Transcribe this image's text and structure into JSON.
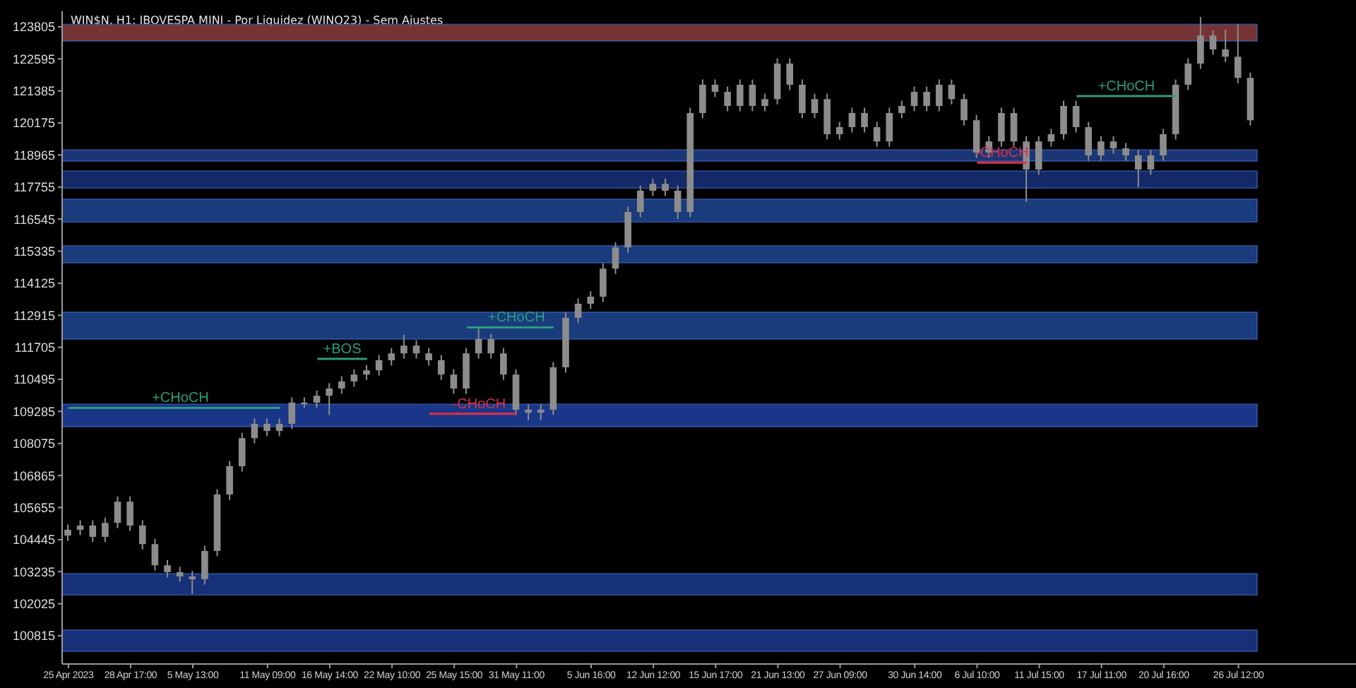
{
  "chart_data": {
    "type": "candlestick",
    "title": "WIN$N, H1:  IBOVESPA MINI - Por Liquidez (WINQ23) - Sem Ajustes",
    "color": "#8c8c8c",
    "categories": [
      "25 Apr 2023",
      null,
      null,
      null,
      null,
      "28 Apr 17:00",
      null,
      null,
      null,
      null,
      "5 May 13:00",
      null,
      null,
      null,
      null,
      null,
      "11 May 09:00",
      null,
      null,
      null,
      null,
      "16 May 14:00",
      null,
      null,
      null,
      null,
      "22 May 10:00",
      null,
      null,
      null,
      null,
      "25 May 15:00",
      null,
      null,
      null,
      null,
      "31 May 11:00",
      null,
      null,
      null,
      null,
      null,
      "5 Jun 16:00",
      null,
      null,
      null,
      null,
      "12 Jun 12:00",
      null,
      null,
      null,
      null,
      "15 Jun 17:00",
      null,
      null,
      null,
      null,
      "21 Jun 13:00",
      null,
      null,
      null,
      null,
      "27 Jun 09:00",
      null,
      null,
      null,
      null,
      null,
      "30 Jun 14:00",
      null,
      null,
      null,
      null,
      "6 Jul 10:00",
      null,
      null,
      null,
      null,
      "11 Jul 15:00",
      null,
      null,
      null,
      null,
      "17 Jul 11:00",
      null,
      null,
      null,
      null,
      "20 Jul 16:00",
      null,
      null,
      null,
      null,
      null,
      "26 Jul 12:00",
      null
    ],
    "ohlc": [
      [
        104600,
        105020,
        104400,
        104820
      ],
      [
        104820,
        105180,
        104620,
        104980
      ],
      [
        104980,
        105180,
        104350,
        104550
      ],
      [
        104550,
        105280,
        104350,
        105080
      ],
      [
        105080,
        106080,
        104880,
        105880
      ],
      [
        105880,
        106080,
        104780,
        104980
      ],
      [
        104980,
        105180,
        104080,
        104280
      ],
      [
        104280,
        104480,
        103280,
        103480
      ],
      [
        103480,
        103680,
        103020,
        103220
      ],
      [
        103220,
        103420,
        102860,
        103060
      ],
      [
        103060,
        103260,
        102400,
        102950
      ],
      [
        102950,
        104220,
        102750,
        104020
      ],
      [
        104020,
        106350,
        103820,
        106150
      ],
      [
        106150,
        107420,
        105950,
        107220
      ],
      [
        107220,
        108480,
        107020,
        108280
      ],
      [
        108280,
        109020,
        108080,
        108820
      ],
      [
        108820,
        109020,
        108350,
        108550
      ],
      [
        108550,
        109020,
        108350,
        108820
      ],
      [
        108820,
        109820,
        108620,
        109620
      ],
      [
        109620,
        109820,
        109420,
        109620
      ],
      [
        109620,
        110080,
        109420,
        109880
      ],
      [
        109880,
        110350,
        109150,
        110150
      ],
      [
        110150,
        110620,
        109950,
        110420
      ],
      [
        110420,
        110880,
        110220,
        110680
      ],
      [
        110680,
        111040,
        110480,
        110840
      ],
      [
        110840,
        111420,
        110640,
        111220
      ],
      [
        111220,
        111680,
        111020,
        111480
      ],
      [
        111480,
        112180,
        111280,
        111770
      ],
      [
        111770,
        111970,
        111280,
        111480
      ],
      [
        111480,
        111680,
        111020,
        111220
      ],
      [
        111220,
        111420,
        110480,
        110680
      ],
      [
        110680,
        110880,
        109950,
        110150
      ],
      [
        110150,
        111680,
        109950,
        111480
      ],
      [
        111480,
        112460,
        111280,
        112020
      ],
      [
        112020,
        112220,
        111280,
        111480
      ],
      [
        111480,
        111680,
        110480,
        110680
      ],
      [
        110680,
        110880,
        109150,
        109350
      ],
      [
        109350,
        109550,
        108950,
        109240
      ],
      [
        109240,
        109550,
        108950,
        109350
      ],
      [
        109350,
        111150,
        109150,
        110950
      ],
      [
        110950,
        113020,
        110750,
        112820
      ],
      [
        112820,
        113550,
        112620,
        113350
      ],
      [
        113350,
        113820,
        113150,
        113620
      ],
      [
        113620,
        114880,
        113420,
        114680
      ],
      [
        114680,
        115680,
        114480,
        115480
      ],
      [
        115480,
        117020,
        115280,
        116820
      ],
      [
        116820,
        117820,
        116620,
        117620
      ],
      [
        117620,
        118080,
        117420,
        117880
      ],
      [
        117880,
        118080,
        117420,
        117620
      ],
      [
        117620,
        117820,
        116550,
        116820
      ],
      [
        116820,
        120750,
        116620,
        120550
      ],
      [
        120550,
        121820,
        120350,
        121620
      ],
      [
        121620,
        121820,
        121150,
        121350
      ],
      [
        121350,
        121550,
        120620,
        120820
      ],
      [
        120820,
        121820,
        120620,
        121620
      ],
      [
        121620,
        121820,
        120620,
        120820
      ],
      [
        120820,
        121280,
        120620,
        121080
      ],
      [
        121080,
        122620,
        120880,
        122420
      ],
      [
        122420,
        122620,
        121420,
        121620
      ],
      [
        121620,
        121820,
        120350,
        120550
      ],
      [
        120550,
        121280,
        120350,
        121080
      ],
      [
        121080,
        121280,
        119550,
        119750
      ],
      [
        119750,
        120220,
        119550,
        120020
      ],
      [
        120020,
        120750,
        119820,
        120550
      ],
      [
        120550,
        120750,
        119820,
        120020
      ],
      [
        120020,
        120220,
        119280,
        119480
      ],
      [
        119480,
        120750,
        119280,
        120550
      ],
      [
        120550,
        121020,
        120350,
        120820
      ],
      [
        120820,
        121550,
        120620,
        121350
      ],
      [
        121350,
        121550,
        120620,
        120820
      ],
      [
        120820,
        121820,
        120620,
        121620
      ],
      [
        121620,
        121820,
        120880,
        121080
      ],
      [
        121080,
        121280,
        120080,
        120280
      ],
      [
        120280,
        120480,
        118860,
        119060
      ],
      [
        119060,
        119680,
        118860,
        119480
      ],
      [
        119480,
        120750,
        119280,
        120550
      ],
      [
        120550,
        120750,
        119280,
        119480
      ],
      [
        119480,
        119680,
        117200,
        118420
      ],
      [
        118420,
        119680,
        118220,
        119480
      ],
      [
        119480,
        119950,
        119280,
        119750
      ],
      [
        119750,
        121020,
        119550,
        120820
      ],
      [
        120820,
        121020,
        119820,
        120020
      ],
      [
        120020,
        120220,
        118750,
        118950
      ],
      [
        118950,
        119680,
        118750,
        119480
      ],
      [
        119480,
        119680,
        119020,
        119220
      ],
      [
        119220,
        119420,
        118750,
        118950
      ],
      [
        118950,
        119150,
        117750,
        118420
      ],
      [
        118420,
        119150,
        118220,
        118950
      ],
      [
        118950,
        119950,
        118750,
        119750
      ],
      [
        119750,
        121820,
        119550,
        121620
      ],
      [
        121620,
        122620,
        121420,
        122420
      ],
      [
        122420,
        124180,
        122220,
        123480
      ],
      [
        123480,
        123680,
        122750,
        122950
      ],
      [
        122950,
        123700,
        122480,
        122680
      ],
      [
        122680,
        123900,
        121680,
        121880
      ],
      [
        121880,
        122080,
        120080,
        120280
      ]
    ],
    "series": [
      {
        "type": "line",
        "name": "+CHoCH",
        "color": "#2a9d7c",
        "values": [
          109420,
          109420,
          109420,
          109420,
          109420,
          109420,
          109420,
          109420,
          109420,
          109420,
          109420,
          109420,
          109420,
          109420,
          109420,
          109420,
          109420,
          109420,
          null,
          null,
          null,
          null,
          null,
          null,
          null,
          null,
          null,
          null,
          null,
          null,
          null,
          null,
          null,
          null,
          null,
          null,
          null,
          null,
          null,
          null,
          null,
          null,
          null,
          null,
          null,
          null,
          null,
          null,
          null,
          null,
          null,
          null,
          null,
          null,
          null,
          null,
          null,
          null,
          null,
          null,
          null,
          null,
          null,
          null,
          null,
          null,
          null,
          null,
          null,
          null,
          null,
          null,
          null,
          null,
          null,
          null,
          null,
          null,
          null,
          null,
          null,
          null,
          null,
          null,
          null,
          null,
          null,
          null,
          null,
          null,
          null,
          null,
          null,
          null,
          null,
          null
        ]
      },
      {
        "type": "line",
        "name": "+BOS",
        "color": "#2a9d7c",
        "values": [
          null,
          null,
          null,
          null,
          null,
          null,
          null,
          null,
          null,
          null,
          null,
          null,
          null,
          null,
          null,
          null,
          null,
          null,
          null,
          null,
          111270,
          111270,
          111270,
          111270,
          111270,
          null,
          null,
          null,
          null,
          null,
          null,
          null,
          null,
          null,
          null,
          null,
          null,
          null,
          null,
          null,
          null,
          null,
          null,
          null,
          null,
          null,
          null,
          null,
          null,
          null,
          null,
          null,
          null,
          null,
          null,
          null,
          null,
          null,
          null,
          null,
          null,
          null,
          null,
          null,
          null,
          null,
          null,
          null,
          null,
          null,
          null,
          null,
          null,
          null,
          null,
          null,
          null,
          null,
          null,
          null,
          null,
          null,
          null,
          null,
          null,
          null,
          null,
          null,
          null,
          null,
          null,
          null,
          null,
          null,
          null,
          null
        ]
      },
      {
        "type": "line",
        "name": "-CHoCH",
        "color": "#e0304a",
        "values": [
          null,
          null,
          null,
          null,
          null,
          null,
          null,
          null,
          null,
          null,
          null,
          null,
          null,
          null,
          null,
          null,
          null,
          null,
          null,
          null,
          null,
          null,
          null,
          null,
          null,
          null,
          null,
          null,
          null,
          109200,
          109200,
          109200,
          109200,
          109200,
          109200,
          109200,
          109200,
          null,
          null,
          null,
          null,
          null,
          null,
          null,
          null,
          null,
          null,
          null,
          null,
          null,
          null,
          null,
          null,
          null,
          null,
          null,
          null,
          null,
          null,
          null,
          null,
          null,
          null,
          null,
          null,
          null,
          null,
          null,
          null,
          null,
          null,
          null,
          null,
          null,
          null,
          null,
          null,
          null,
          null,
          null,
          null,
          null,
          null,
          null,
          null,
          null,
          null,
          null,
          null,
          null,
          null,
          null,
          null,
          null,
          null,
          null
        ]
      },
      {
        "type": "line",
        "name": "+CHoCH",
        "color": "#2a9d7c",
        "values": [
          null,
          null,
          null,
          null,
          null,
          null,
          null,
          null,
          null,
          null,
          null,
          null,
          null,
          null,
          null,
          null,
          null,
          null,
          null,
          null,
          null,
          null,
          null,
          null,
          null,
          null,
          null,
          null,
          null,
          null,
          null,
          null,
          112460,
          112460,
          112460,
          112460,
          112460,
          112460,
          112460,
          112460,
          null,
          null,
          null,
          null,
          null,
          null,
          null,
          null,
          null,
          null,
          null,
          null,
          null,
          null,
          null,
          null,
          null,
          null,
          null,
          null,
          null,
          null,
          null,
          null,
          null,
          null,
          null,
          null,
          null,
          null,
          null,
          null,
          null,
          null,
          null,
          null,
          null,
          null,
          null,
          null,
          null,
          null,
          null,
          null,
          null,
          null,
          null,
          null,
          null,
          null,
          null,
          null,
          null,
          null,
          null,
          null
        ]
      },
      {
        "type": "line",
        "name": "-CHoCH",
        "color": "#e0304a",
        "values": [
          null,
          null,
          null,
          null,
          null,
          null,
          null,
          null,
          null,
          null,
          null,
          null,
          null,
          null,
          null,
          null,
          null,
          null,
          null,
          null,
          null,
          null,
          null,
          null,
          null,
          null,
          null,
          null,
          null,
          null,
          null,
          null,
          null,
          null,
          null,
          null,
          null,
          null,
          null,
          null,
          null,
          null,
          null,
          null,
          null,
          null,
          null,
          null,
          null,
          null,
          null,
          null,
          null,
          null,
          null,
          null,
          null,
          null,
          null,
          null,
          null,
          null,
          null,
          null,
          null,
          null,
          null,
          null,
          null,
          null,
          null,
          null,
          null,
          118680,
          118680,
          118680,
          118680,
          118680,
          null,
          null,
          null,
          null,
          null,
          null,
          null,
          null,
          null,
          null,
          null,
          null,
          null,
          null,
          null,
          null,
          null,
          null
        ]
      },
      {
        "type": "line",
        "name": "+CHoCH",
        "color": "#2a9d7c",
        "values": [
          null,
          null,
          null,
          null,
          null,
          null,
          null,
          null,
          null,
          null,
          null,
          null,
          null,
          null,
          null,
          null,
          null,
          null,
          null,
          null,
          null,
          null,
          null,
          null,
          null,
          null,
          null,
          null,
          null,
          null,
          null,
          null,
          null,
          null,
          null,
          null,
          null,
          null,
          null,
          null,
          null,
          null,
          null,
          null,
          null,
          null,
          null,
          null,
          null,
          null,
          null,
          null,
          null,
          null,
          null,
          null,
          null,
          null,
          null,
          null,
          null,
          null,
          null,
          null,
          null,
          null,
          null,
          null,
          null,
          null,
          null,
          null,
          null,
          null,
          null,
          null,
          null,
          null,
          null,
          null,
          null,
          121190,
          121190,
          121190,
          121190,
          121190,
          121190,
          121190,
          121190,
          121190,
          null,
          null,
          null,
          null,
          null,
          null
        ]
      }
    ],
    "bands": [
      {
        "axis": "y",
        "from": 123270,
        "to": 123900,
        "color": "#8b3c3c"
      },
      {
        "axis": "y",
        "from": 118740,
        "to": 119160,
        "color": "#1f3f8a"
      },
      {
        "axis": "y",
        "from": 117720,
        "to": 118360,
        "color": "#16307a"
      },
      {
        "axis": "y",
        "from": 116440,
        "to": 117300,
        "color": "#1f4592"
      },
      {
        "axis": "y",
        "from": 114900,
        "to": 115540,
        "color": "#1f4592"
      },
      {
        "axis": "y",
        "from": 112020,
        "to": 113030,
        "color": "#1f4592"
      },
      {
        "axis": "y",
        "from": 108710,
        "to": 109560,
        "color": "#1e3fa0"
      },
      {
        "axis": "y",
        "from": 102360,
        "to": 103160,
        "color": "#1a3a8c"
      },
      {
        "axis": "y",
        "from": 100230,
        "to": 101030,
        "color": "#1a3a8c"
      }
    ],
    "ylim": [
      99750,
      124390
    ],
    "yticks": [
      123805,
      122595,
      121385,
      120175,
      118965,
      117755,
      116545,
      115335,
      114125,
      112915,
      111705,
      110495,
      109285,
      108075,
      106865,
      105655,
      104445,
      103235,
      102025,
      100815
    ]
  }
}
